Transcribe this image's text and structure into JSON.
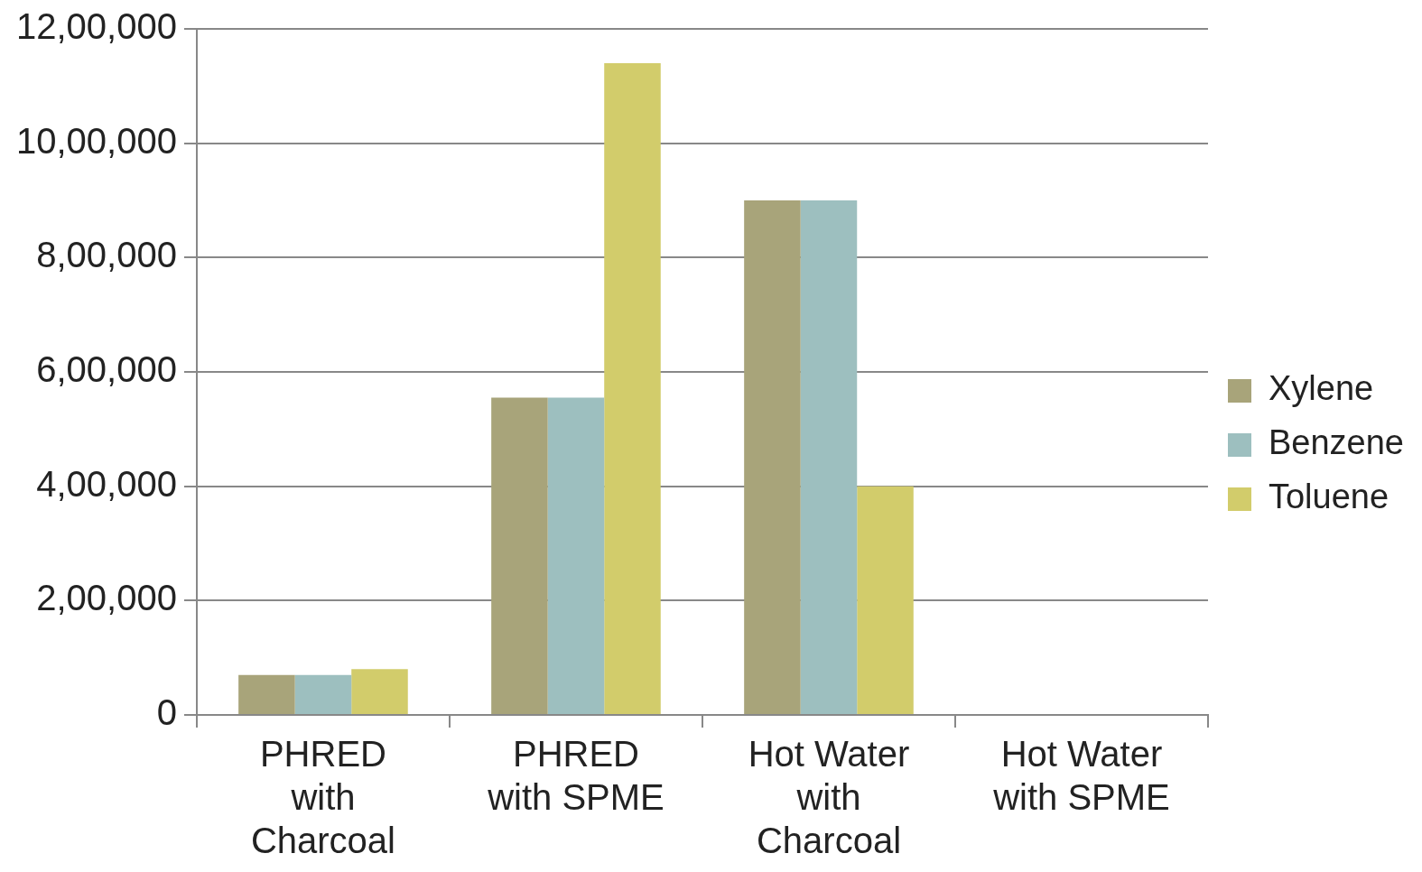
{
  "chart_data": {
    "type": "bar",
    "categories": [
      "PHRED with Charcoal",
      "PHRED with SPME",
      "Hot Water with Charcoal",
      "Hot Water with SPME"
    ],
    "series": [
      {
        "name": "Xylene",
        "color": "#a8a47a",
        "values": [
          70000,
          555000,
          900000,
          0
        ]
      },
      {
        "name": "Benzene",
        "color": "#9dbfbf",
        "values": [
          70000,
          555000,
          900000,
          0
        ]
      },
      {
        "name": "Toluene",
        "color": "#d2cc6b",
        "values": [
          80000,
          1140000,
          400000,
          0
        ]
      }
    ],
    "ylim": [
      0,
      1200000
    ],
    "yticks": [
      {
        "value": 0,
        "label": "0"
      },
      {
        "value": 200000,
        "label": "2,00,000"
      },
      {
        "value": 400000,
        "label": "4,00,000"
      },
      {
        "value": 600000,
        "label": "6,00,000"
      },
      {
        "value": 800000,
        "label": "8,00,000"
      },
      {
        "value": 1000000,
        "label": "10,00,000"
      },
      {
        "value": 1200000,
        "label": "12,00,000"
      }
    ],
    "grid": "y",
    "legend": "right"
  }
}
